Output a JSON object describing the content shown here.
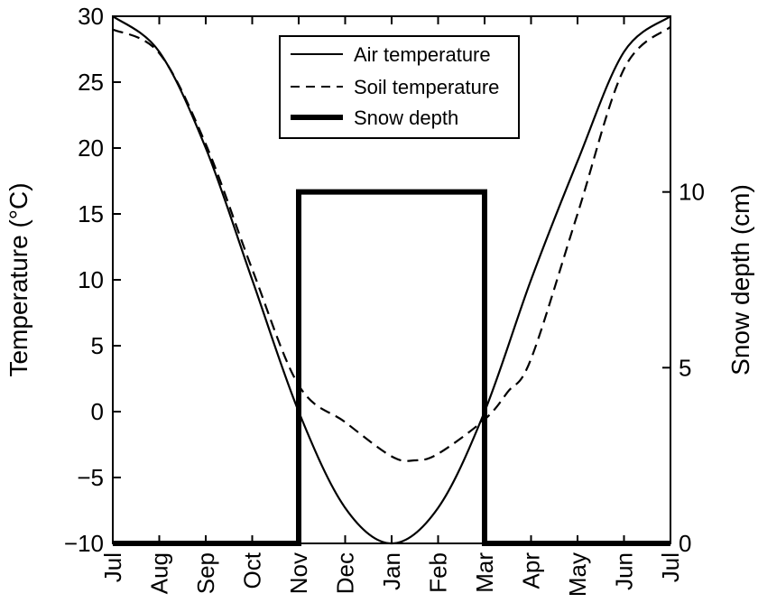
{
  "chart_data": {
    "type": "line",
    "title": "",
    "xlabel": "",
    "ylabel": "Temperature (°C)",
    "y2label": "Snow depth (cm)",
    "ylim": [
      -10,
      30
    ],
    "y2lim": [
      0,
      15
    ],
    "xlim": [
      0,
      12
    ],
    "x_tick_labels": [
      "Jul",
      "Aug",
      "Sep",
      "Oct",
      "Nov",
      "Dec",
      "Jan",
      "Feb",
      "Mar",
      "Apr",
      "May",
      "Jun",
      "Jul"
    ],
    "y_ticks": [
      30,
      25,
      20,
      15,
      10,
      5,
      0,
      -5,
      -10
    ],
    "y_tick_labels": [
      "30",
      "25",
      "20",
      "15",
      "10",
      "5",
      "0",
      "−5",
      "−10"
    ],
    "y2_ticks": [
      0,
      5,
      10
    ],
    "y2_tick_labels": [
      "0",
      "5",
      "10"
    ],
    "grid": false,
    "legend_position": "top-center",
    "series": [
      {
        "name": "Air temperature",
        "style": "solid",
        "axis": "left",
        "x": [
          0,
          1,
          2,
          3,
          4,
          5,
          6,
          7,
          8,
          9,
          10,
          11,
          12
        ],
        "values": [
          30,
          27.3,
          20,
          10,
          0,
          -7.3,
          -10,
          -7.3,
          0,
          10,
          19,
          27.3,
          30
        ]
      },
      {
        "name": "Soil temperature",
        "style": "dashed",
        "axis": "left",
        "x": [
          0,
          1,
          2,
          3,
          4,
          5,
          6,
          6.5,
          7,
          8,
          8.5,
          9,
          10,
          11,
          12
        ],
        "values": [
          29,
          27.2,
          20.3,
          10.8,
          2.0,
          -0.8,
          -3.4,
          -3.7,
          -3.2,
          -0.6,
          1.5,
          4.0,
          15.0,
          26.0,
          29.2
        ]
      },
      {
        "name": "Snow depth",
        "style": "thick",
        "axis": "right",
        "x": [
          0,
          4,
          4,
          8,
          8,
          12
        ],
        "values": [
          0,
          0,
          10,
          10,
          0,
          0
        ]
      }
    ]
  }
}
